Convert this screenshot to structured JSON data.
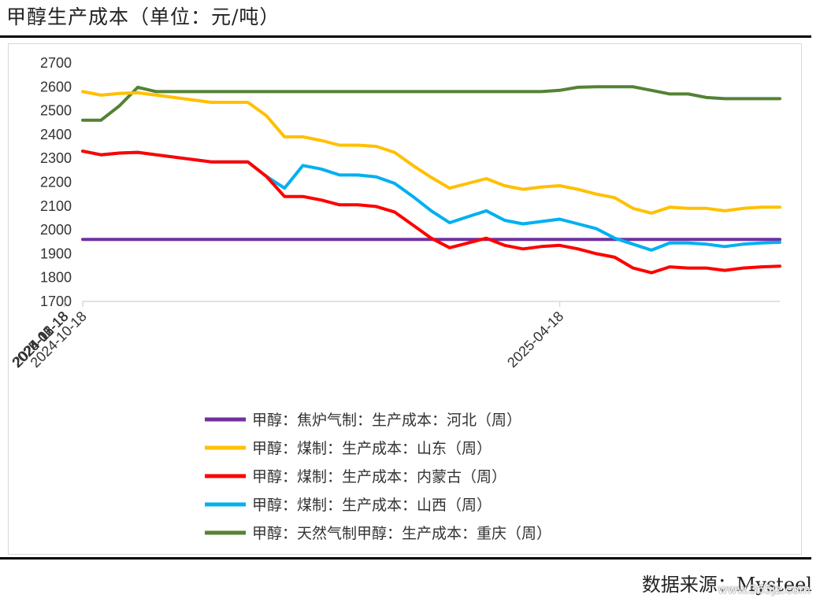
{
  "header": {
    "title": "甲醇生产成本（单位：元/吨）"
  },
  "footer": {
    "source": "数据来源：Mysteel",
    "watermark": "www.365jz.com"
  },
  "chart_data": {
    "type": "line",
    "ylim": [
      1700,
      2700
    ],
    "yticks": [
      1700,
      1800,
      1900,
      2000,
      2100,
      2200,
      2300,
      2400,
      2500,
      2600,
      2700
    ],
    "x": [
      "2024-10-18",
      "2024-10-25",
      "2024-11-01",
      "2024-11-08",
      "2024-11-15",
      "2024-11-22",
      "2024-11-29",
      "2024-12-06",
      "2024-12-13",
      "2024-12-20",
      "2024-12-27",
      "2025-01-03",
      "2025-01-10",
      "2025-01-17",
      "2025-01-24",
      "2025-01-31",
      "2025-02-07",
      "2025-02-14",
      "2025-02-21",
      "2025-02-28",
      "2025-03-07",
      "2025-03-14",
      "2025-03-21",
      "2025-03-28",
      "2025-04-04",
      "2025-04-11",
      "2025-04-18",
      "2025-04-25",
      "2025-05-02",
      "2025-05-09",
      "2025-05-16",
      "2025-05-23",
      "2025-05-30",
      "2025-06-06",
      "2025-06-13",
      "2025-06-20",
      "2025-06-27",
      "2025-07-04",
      "2025-07-11"
    ],
    "xtick_labels": [
      "2024-10-18",
      "2024-11-18",
      "2024-12-18",
      "2025-01-18",
      "2025-02-18",
      "2025-03-18",
      "2025-04-18",
      "2025-05-18",
      "2025-06-18"
    ],
    "legend_position": "bottom",
    "grid": false,
    "series": [
      {
        "name": "甲醇：焦炉气制：生产成本：河北（周）",
        "color": "#7030a0",
        "values": [
          1960,
          1960,
          1960,
          1960,
          1960,
          1960,
          1960,
          1960,
          1960,
          1960,
          1960,
          1960,
          1960,
          1960,
          1960,
          1960,
          1960,
          1960,
          1960,
          1960,
          1960,
          1960,
          1960,
          1960,
          1960,
          1960,
          1960,
          1960,
          1960,
          1960,
          1960,
          1960,
          1960,
          1960,
          1960,
          1960,
          1960,
          1960,
          1960
        ]
      },
      {
        "name": "甲醇：煤制：生产成本：山东（周）",
        "color": "#ffc000",
        "values": [
          2580,
          2565,
          2572,
          2575,
          2565,
          2555,
          2545,
          2535,
          2535,
          2535,
          2480,
          2390,
          2390,
          2375,
          2355,
          2355,
          2350,
          2325,
          2270,
          2220,
          2175,
          2195,
          2215,
          2185,
          2170,
          2180,
          2185,
          2170,
          2150,
          2135,
          2090,
          2070,
          2095,
          2090,
          2090,
          2080,
          2090,
          2095,
          2095
        ]
      },
      {
        "name": "甲醇：煤制：生产成本：内蒙古（周）",
        "color": "#ff0000",
        "values": [
          2330,
          2315,
          2322,
          2325,
          2315,
          2305,
          2295,
          2285,
          2285,
          2285,
          2225,
          2140,
          2140,
          2125,
          2105,
          2105,
          2098,
          2075,
          2020,
          1965,
          1925,
          1945,
          1965,
          1935,
          1920,
          1930,
          1935,
          1920,
          1900,
          1885,
          1840,
          1820,
          1845,
          1840,
          1840,
          1830,
          1840,
          1845,
          1848
        ]
      },
      {
        "name": "甲醇：煤制：生产成本：山西（周）",
        "color": "#00b0f0",
        "values": [
          2330,
          2315,
          2322,
          2325,
          2315,
          2305,
          2295,
          2285,
          2285,
          2285,
          2225,
          2175,
          2270,
          2255,
          2230,
          2230,
          2222,
          2195,
          2140,
          2080,
          2030,
          2055,
          2080,
          2040,
          2025,
          2035,
          2045,
          2025,
          2005,
          1965,
          1940,
          1915,
          1945,
          1945,
          1940,
          1930,
          1940,
          1945,
          1948
        ]
      },
      {
        "name": "甲醇：天然气制甲醇：生产成本：重庆（周）",
        "color": "#548235",
        "values": [
          2460,
          2460,
          2520,
          2598,
          2580,
          2580,
          2580,
          2580,
          2580,
          2580,
          2580,
          2580,
          2580,
          2580,
          2580,
          2580,
          2580,
          2580,
          2580,
          2580,
          2580,
          2580,
          2580,
          2580,
          2580,
          2580,
          2585,
          2598,
          2600,
          2600,
          2600,
          2585,
          2570,
          2570,
          2555,
          2550,
          2550,
          2550,
          2550
        ]
      }
    ]
  }
}
